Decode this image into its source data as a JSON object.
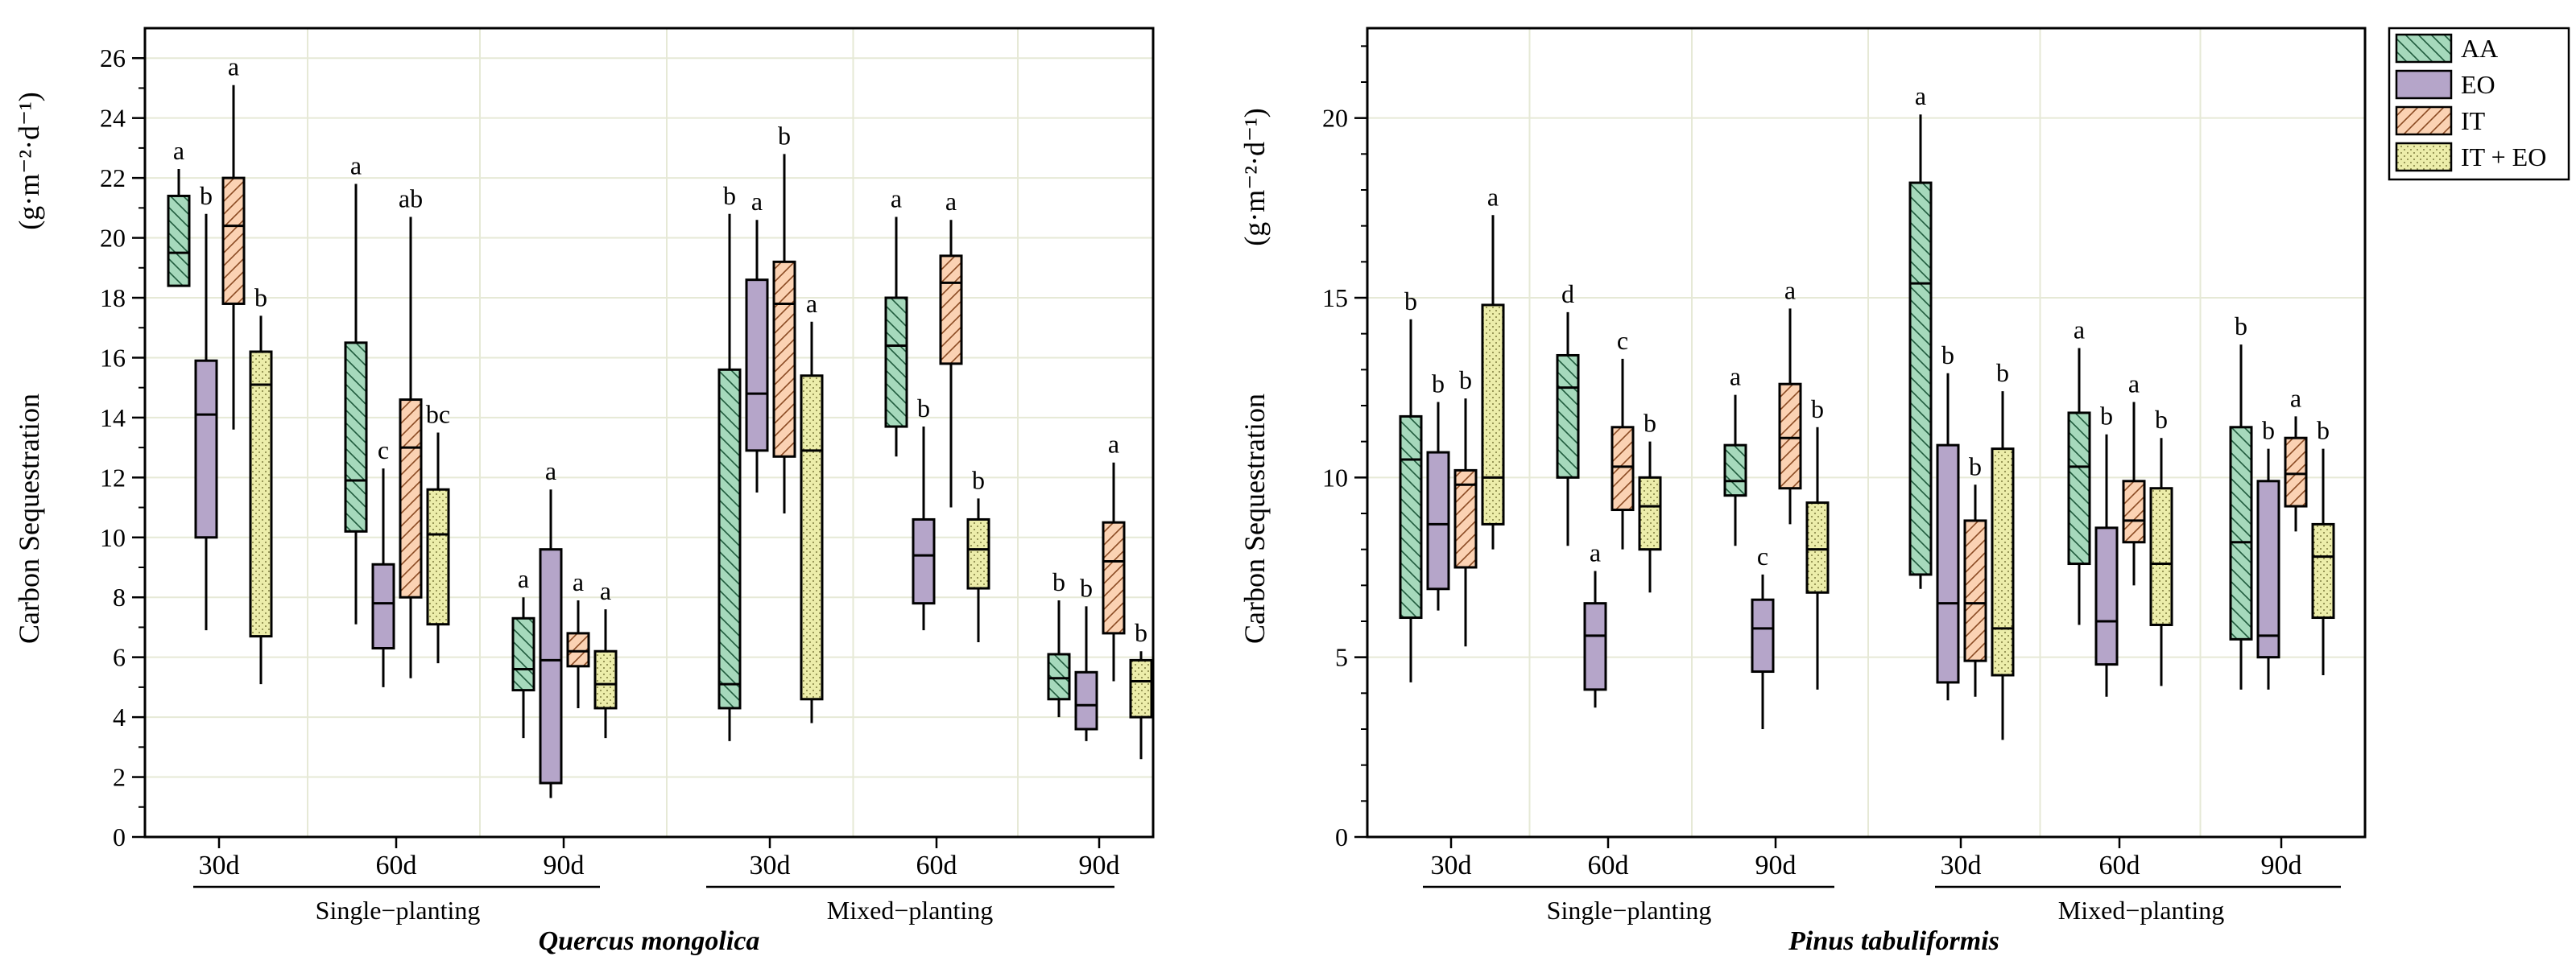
{
  "colors": {
    "AA": "#a6d9bc",
    "EO": "#b5a5c9",
    "IT": "#fbd2b3",
    "ITEO": "#ecedaa",
    "grid": "#e6e9d6"
  },
  "legend": {
    "position": "top-right",
    "items": [
      {
        "key": "AA",
        "label": "AA",
        "pattern": "diag-down"
      },
      {
        "key": "EO",
        "label": "EO",
        "pattern": "solid"
      },
      {
        "key": "IT",
        "label": "IT",
        "pattern": "diag-up"
      },
      {
        "key": "ITEO",
        "label": "IT + EO",
        "pattern": "dots"
      }
    ]
  },
  "chart_data": [
    {
      "type": "box",
      "species": "Quercus mongolica",
      "ylabel": "Carbon Sequestration",
      "yunit": "(g·m⁻²·d⁻¹)",
      "ylim": [
        0,
        27
      ],
      "yticks": [
        0,
        2,
        4,
        6,
        8,
        10,
        12,
        14,
        16,
        18,
        20,
        22,
        24,
        26
      ],
      "grid": true,
      "categories": [
        "30d",
        "60d",
        "90d",
        "30d",
        "60d",
        "90d"
      ],
      "groups": [
        {
          "label": "Single−planting",
          "from": 0,
          "to": 2
        },
        {
          "label": "Mixed−planting",
          "from": 3,
          "to": 5
        }
      ],
      "series": [
        {
          "key": "AA",
          "boxes": [
            {
              "min": 18.4,
              "q1": 18.4,
              "median": 19.5,
              "q3": 21.4,
              "max": 22.3,
              "sig": "a"
            },
            {
              "min": 7.1,
              "q1": 10.2,
              "median": 11.9,
              "q3": 16.5,
              "max": 21.8,
              "sig": "a"
            },
            {
              "min": 3.3,
              "q1": 4.9,
              "median": 5.6,
              "q3": 7.3,
              "max": 8.0,
              "sig": "a"
            },
            {
              "min": 3.2,
              "q1": 4.3,
              "median": 5.1,
              "q3": 15.6,
              "max": 20.8,
              "sig": "b"
            },
            {
              "min": 12.7,
              "q1": 13.7,
              "median": 16.4,
              "q3": 18.0,
              "max": 20.7,
              "sig": "a"
            },
            {
              "min": 4.0,
              "q1": 4.6,
              "median": 5.3,
              "q3": 6.1,
              "max": 7.9,
              "sig": "b"
            }
          ]
        },
        {
          "key": "EO",
          "boxes": [
            {
              "min": 6.9,
              "q1": 10.0,
              "median": 14.1,
              "q3": 15.9,
              "max": 20.8,
              "sig": "b"
            },
            {
              "min": 5.0,
              "q1": 6.3,
              "median": 7.8,
              "q3": 9.1,
              "max": 12.3,
              "sig": "c"
            },
            {
              "min": 1.3,
              "q1": 1.8,
              "median": 5.9,
              "q3": 9.6,
              "max": 11.6,
              "sig": "a"
            },
            {
              "min": 11.5,
              "q1": 12.9,
              "median": 14.8,
              "q3": 18.6,
              "max": 20.6,
              "sig": "a"
            },
            {
              "min": 6.9,
              "q1": 7.8,
              "median": 9.4,
              "q3": 10.6,
              "max": 13.7,
              "sig": "b"
            },
            {
              "min": 3.2,
              "q1": 3.6,
              "median": 4.4,
              "q3": 5.5,
              "max": 7.7,
              "sig": "b"
            }
          ]
        },
        {
          "key": "IT",
          "boxes": [
            {
              "min": 13.6,
              "q1": 17.8,
              "median": 20.4,
              "q3": 22.0,
              "max": 25.1,
              "sig": "a"
            },
            {
              "min": 5.3,
              "q1": 8.0,
              "median": 13.0,
              "q3": 14.6,
              "max": 20.7,
              "sig": "ab"
            },
            {
              "min": 4.3,
              "q1": 5.7,
              "median": 6.2,
              "q3": 6.8,
              "max": 7.9,
              "sig": "a"
            },
            {
              "min": 10.8,
              "q1": 12.7,
              "median": 17.8,
              "q3": 19.2,
              "max": 22.8,
              "sig": "b"
            },
            {
              "min": 11.0,
              "q1": 15.8,
              "median": 18.5,
              "q3": 19.4,
              "max": 20.6,
              "sig": "a"
            },
            {
              "min": 5.2,
              "q1": 6.8,
              "median": 9.2,
              "q3": 10.5,
              "max": 12.5,
              "sig": "a"
            }
          ]
        },
        {
          "key": "ITEO",
          "boxes": [
            {
              "min": 5.1,
              "q1": 6.7,
              "median": 15.1,
              "q3": 16.2,
              "max": 17.4,
              "sig": "b"
            },
            {
              "min": 5.8,
              "q1": 7.1,
              "median": 10.1,
              "q3": 11.6,
              "max": 13.5,
              "sig": "bc"
            },
            {
              "min": 3.3,
              "q1": 4.3,
              "median": 5.1,
              "q3": 6.2,
              "max": 7.6,
              "sig": "a"
            },
            {
              "min": 3.8,
              "q1": 4.6,
              "median": 12.9,
              "q3": 15.4,
              "max": 17.2,
              "sig": "a"
            },
            {
              "min": 6.5,
              "q1": 8.3,
              "median": 9.6,
              "q3": 10.6,
              "max": 11.3,
              "sig": "b"
            },
            {
              "min": 2.6,
              "q1": 4.0,
              "median": 5.2,
              "q3": 5.9,
              "max": 6.2,
              "sig": "b"
            }
          ]
        }
      ]
    },
    {
      "type": "box",
      "species": "Pinus tabuliformis",
      "ylabel": "Carbon Sequestration",
      "yunit": "(g·m⁻²·d⁻¹)",
      "ylim": [
        0,
        22.5
      ],
      "yticks": [
        0,
        5,
        10,
        15,
        20
      ],
      "grid": true,
      "categories": [
        "30d",
        "60d",
        "90d",
        "30d",
        "60d",
        "90d"
      ],
      "groups": [
        {
          "label": "Single−planting",
          "from": 0,
          "to": 2
        },
        {
          "label": "Mixed−planting",
          "from": 3,
          "to": 5
        }
      ],
      "series": [
        {
          "key": "AA",
          "boxes": [
            {
              "min": 4.3,
              "q1": 6.1,
              "median": 10.5,
              "q3": 11.7,
              "max": 14.4,
              "sig": "b"
            },
            {
              "min": 8.1,
              "q1": 10.0,
              "median": 12.5,
              "q3": 13.4,
              "max": 14.6,
              "sig": "d"
            },
            {
              "min": 8.1,
              "q1": 9.5,
              "median": 9.9,
              "q3": 10.9,
              "max": 12.3,
              "sig": "a"
            },
            {
              "min": 6.9,
              "q1": 7.3,
              "median": 15.4,
              "q3": 18.2,
              "max": 20.1,
              "sig": "a"
            },
            {
              "min": 5.9,
              "q1": 7.6,
              "median": 10.3,
              "q3": 11.8,
              "max": 13.6,
              "sig": "a"
            },
            {
              "min": 4.1,
              "q1": 5.5,
              "median": 8.2,
              "q3": 11.4,
              "max": 13.7,
              "sig": "b"
            }
          ]
        },
        {
          "key": "EO",
          "boxes": [
            {
              "min": 6.3,
              "q1": 6.9,
              "median": 8.7,
              "q3": 10.7,
              "max": 12.1,
              "sig": "b"
            },
            {
              "min": 3.6,
              "q1": 4.1,
              "median": 5.6,
              "q3": 6.5,
              "max": 7.4,
              "sig": "a"
            },
            {
              "min": 3.0,
              "q1": 4.6,
              "median": 5.8,
              "q3": 6.6,
              "max": 7.3,
              "sig": "c"
            },
            {
              "min": 3.8,
              "q1": 4.3,
              "median": 6.5,
              "q3": 10.9,
              "max": 12.9,
              "sig": "b"
            },
            {
              "min": 3.9,
              "q1": 4.8,
              "median": 6.0,
              "q3": 8.6,
              "max": 11.2,
              "sig": "b"
            },
            {
              "min": 4.1,
              "q1": 5.0,
              "median": 5.6,
              "q3": 9.9,
              "max": 10.8,
              "sig": "b"
            }
          ]
        },
        {
          "key": "IT",
          "boxes": [
            {
              "min": 5.3,
              "q1": 7.5,
              "median": 9.8,
              "q3": 10.2,
              "max": 12.2,
              "sig": "b"
            },
            {
              "min": 8.0,
              "q1": 9.1,
              "median": 10.3,
              "q3": 11.4,
              "max": 13.3,
              "sig": "c"
            },
            {
              "min": 8.7,
              "q1": 9.7,
              "median": 11.1,
              "q3": 12.6,
              "max": 14.7,
              "sig": "a"
            },
            {
              "min": 3.9,
              "q1": 4.9,
              "median": 6.5,
              "q3": 8.8,
              "max": 9.8,
              "sig": "b"
            },
            {
              "min": 7.0,
              "q1": 8.2,
              "median": 8.8,
              "q3": 9.9,
              "max": 12.1,
              "sig": "a"
            },
            {
              "min": 8.5,
              "q1": 9.2,
              "median": 10.1,
              "q3": 11.1,
              "max": 11.7,
              "sig": "a"
            }
          ]
        },
        {
          "key": "ITEO",
          "boxes": [
            {
              "min": 8.0,
              "q1": 8.7,
              "median": 10.0,
              "q3": 14.8,
              "max": 17.3,
              "sig": "a"
            },
            {
              "min": 6.8,
              "q1": 8.0,
              "median": 9.2,
              "q3": 10.0,
              "max": 11.0,
              "sig": "b"
            },
            {
              "min": 4.1,
              "q1": 6.8,
              "median": 8.0,
              "q3": 9.3,
              "max": 11.4,
              "sig": "b"
            },
            {
              "min": 2.7,
              "q1": 4.5,
              "median": 5.8,
              "q3": 10.8,
              "max": 12.4,
              "sig": "b"
            },
            {
              "min": 4.2,
              "q1": 5.9,
              "median": 7.6,
              "q3": 9.7,
              "max": 11.1,
              "sig": "b"
            },
            {
              "min": 4.5,
              "q1": 6.1,
              "median": 7.8,
              "q3": 8.7,
              "max": 10.8,
              "sig": "b"
            }
          ]
        }
      ]
    }
  ]
}
